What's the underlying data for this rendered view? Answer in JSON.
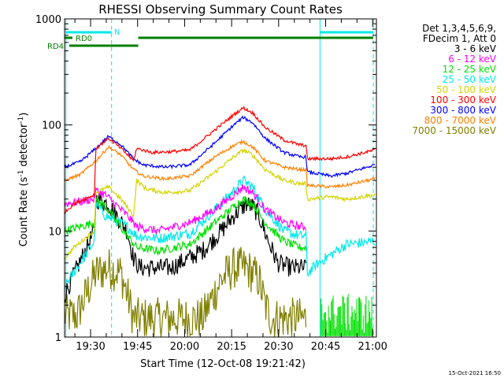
{
  "chart_data": {
    "type": "line",
    "title": "RHESSI Observing Summary Count Rates",
    "xlabel": "Start Time (12-Oct-08 19:21:42)",
    "ylabel_main": "Count Rate (s",
    "ylabel_sup1": "-1",
    "ylabel_mid": " detector",
    "ylabel_sup2": "-1",
    "ylabel_end": ")",
    "y_scale": "log",
    "ylim": [
      1,
      1000
    ],
    "xlim_minutes": [
      0,
      99.5
    ],
    "x_ticks": [
      {
        "minute": 8.3,
        "label": "19:30"
      },
      {
        "minute": 23.3,
        "label": "19:45"
      },
      {
        "minute": 38.3,
        "label": "20:00"
      },
      {
        "minute": 53.3,
        "label": "20:15"
      },
      {
        "minute": 68.3,
        "label": "20:30"
      },
      {
        "minute": 83.3,
        "label": "20:45"
      },
      {
        "minute": 98.3,
        "label": "21:00"
      }
    ],
    "y_ticks": [
      {
        "value": 1,
        "label": "1"
      },
      {
        "value": 10,
        "label": "10"
      },
      {
        "value": 100,
        "label": "100"
      },
      {
        "value": 1000,
        "label": "1000"
      }
    ],
    "legend_position": "right",
    "legend_header": [
      "Det 1,3,4,5,6,9,",
      "FDecim 1, Att 0"
    ],
    "series": [
      {
        "name": "3 - 6 keV",
        "color": "#000000",
        "noise": 0.18,
        "points": [
          [
            0,
            2.5
          ],
          [
            9.5,
            10
          ],
          [
            10,
            20
          ],
          [
            14,
            18
          ],
          [
            20,
            10
          ],
          [
            22,
            5.5
          ],
          [
            24,
            4.5
          ],
          [
            34,
            4.5
          ],
          [
            44,
            6.5
          ],
          [
            50,
            10
          ],
          [
            54,
            14
          ],
          [
            56,
            16
          ],
          [
            58,
            18
          ],
          [
            60,
            17
          ],
          [
            62,
            14
          ],
          [
            65,
            8
          ],
          [
            68,
            5
          ],
          [
            72,
            4.5
          ],
          [
            77,
            4.5
          ]
        ]
      },
      {
        "name": "6 - 12 keV",
        "color": "#ff00ff",
        "noise": 0.08,
        "points": [
          [
            0,
            18
          ],
          [
            9.5,
            20
          ],
          [
            10,
            24
          ],
          [
            13,
            22
          ],
          [
            20,
            14
          ],
          [
            23,
            11
          ],
          [
            30,
            10
          ],
          [
            40,
            12
          ],
          [
            48,
            16
          ],
          [
            54,
            22
          ],
          [
            57,
            26
          ],
          [
            60,
            23
          ],
          [
            64,
            16
          ],
          [
            70,
            12
          ],
          [
            75,
            11
          ],
          [
            77,
            11
          ]
        ]
      },
      {
        "name": "12 - 25 keV",
        "color": "#00e000",
        "noise": 0.08,
        "points": [
          [
            0,
            10
          ],
          [
            9.5,
            12
          ],
          [
            10,
            20
          ],
          [
            13,
            17
          ],
          [
            20,
            9
          ],
          [
            23,
            7
          ],
          [
            30,
            6.5
          ],
          [
            40,
            7.5
          ],
          [
            48,
            12
          ],
          [
            54,
            17
          ],
          [
            57,
            20
          ],
          [
            60,
            18
          ],
          [
            64,
            12
          ],
          [
            70,
            8
          ],
          [
            75,
            7
          ],
          [
            77,
            7
          ]
        ]
      },
      {
        "name": "25 - 50 keV",
        "color": "#00e8e8",
        "noise": 0.1,
        "points": [
          [
            0,
            3
          ],
          [
            9.5,
            8
          ],
          [
            10,
            18
          ],
          [
            13,
            14
          ],
          [
            20,
            11
          ],
          [
            23,
            9
          ],
          [
            30,
            8.5
          ],
          [
            40,
            9.5
          ],
          [
            48,
            16
          ],
          [
            54,
            24
          ],
          [
            57,
            30
          ],
          [
            60,
            26
          ],
          [
            64,
            16
          ],
          [
            70,
            10
          ],
          [
            75,
            9
          ],
          [
            77,
            9
          ],
          [
            77.5,
            4
          ],
          [
            81,
            5
          ],
          [
            85,
            6
          ],
          [
            90,
            7.5
          ],
          [
            99,
            8
          ]
        ]
      },
      {
        "name": "50 - 100 keV",
        "color": "#d4d400",
        "noise": 0.04,
        "points": [
          [
            0,
            5.5
          ],
          [
            3,
            7
          ],
          [
            9.5,
            10
          ],
          [
            10,
            23
          ],
          [
            14,
            26
          ],
          [
            18,
            20
          ],
          [
            22,
            14
          ],
          [
            23,
            30
          ],
          [
            26,
            25
          ],
          [
            32,
            23
          ],
          [
            40,
            24
          ],
          [
            48,
            36
          ],
          [
            54,
            50
          ],
          [
            57,
            58
          ],
          [
            60,
            52
          ],
          [
            64,
            38
          ],
          [
            70,
            30
          ],
          [
            75,
            28
          ],
          [
            77,
            28
          ],
          [
            77.5,
            20
          ],
          [
            85,
            21
          ],
          [
            90,
            20
          ],
          [
            99,
            22
          ]
        ]
      },
      {
        "name": "100 - 300 keV",
        "color": "#ff0000",
        "noise": 0.03,
        "points": [
          [
            0,
            15
          ],
          [
            3,
            18
          ],
          [
            9.5,
            22
          ],
          [
            10,
            60
          ],
          [
            14,
            75
          ],
          [
            18,
            60
          ],
          [
            22,
            46
          ],
          [
            23,
            60
          ],
          [
            28,
            55
          ],
          [
            34,
            56
          ],
          [
            40,
            58
          ],
          [
            48,
            90
          ],
          [
            54,
            125
          ],
          [
            57,
            145
          ],
          [
            60,
            130
          ],
          [
            64,
            95
          ],
          [
            70,
            72
          ],
          [
            75,
            65
          ],
          [
            77,
            64
          ],
          [
            77.5,
            48
          ],
          [
            85,
            48
          ],
          [
            90,
            50
          ],
          [
            99,
            58
          ]
        ]
      },
      {
        "name": "300 - 800 keV",
        "color": "#0000ff",
        "noise": 0.03,
        "points": [
          [
            0,
            40
          ],
          [
            5,
            45
          ],
          [
            10,
            60
          ],
          [
            14,
            78
          ],
          [
            18,
            65
          ],
          [
            22,
            48
          ],
          [
            25,
            42
          ],
          [
            32,
            40
          ],
          [
            40,
            42
          ],
          [
            48,
            68
          ],
          [
            54,
            100
          ],
          [
            57,
            118
          ],
          [
            60,
            105
          ],
          [
            64,
            75
          ],
          [
            70,
            55
          ],
          [
            75,
            50
          ],
          [
            77,
            50
          ],
          [
            77.5,
            36
          ],
          [
            85,
            33
          ],
          [
            90,
            35
          ],
          [
            99,
            42
          ]
        ]
      },
      {
        "name": "800 - 7000 keV",
        "color": "#ff8000",
        "noise": 0.03,
        "points": [
          [
            0,
            30
          ],
          [
            5,
            34
          ],
          [
            10,
            46
          ],
          [
            14,
            62
          ],
          [
            18,
            52
          ],
          [
            22,
            38
          ],
          [
            25,
            33
          ],
          [
            32,
            31
          ],
          [
            40,
            33
          ],
          [
            48,
            50
          ],
          [
            54,
            64
          ],
          [
            57,
            70
          ],
          [
            60,
            62
          ],
          [
            64,
            46
          ],
          [
            70,
            40
          ],
          [
            75,
            38
          ],
          [
            77,
            38
          ],
          [
            77.5,
            27
          ],
          [
            85,
            26
          ],
          [
            90,
            27
          ],
          [
            99,
            31
          ]
        ]
      },
      {
        "name": "7000 - 15000 keV",
        "color": "#808000",
        "noise": 0.4,
        "points": [
          [
            0,
            1.6
          ],
          [
            4,
            1.6
          ],
          [
            8,
            3
          ],
          [
            10,
            4
          ],
          [
            14,
            4.5
          ],
          [
            18,
            4
          ],
          [
            20,
            2.5
          ],
          [
            22,
            1.5
          ],
          [
            24,
            1.5
          ],
          [
            44,
            1.5
          ],
          [
            46,
            2
          ],
          [
            50,
            3.5
          ],
          [
            54,
            4.5
          ],
          [
            58,
            4.5
          ],
          [
            62,
            3.5
          ],
          [
            64,
            2
          ],
          [
            66,
            1.5
          ],
          [
            77,
            1.5
          ]
        ]
      }
    ],
    "rd_label": "RD0",
    "rd4_label": "RD4",
    "n_label": "N"
  },
  "timestamp": "15-Oct-2021 16:50"
}
